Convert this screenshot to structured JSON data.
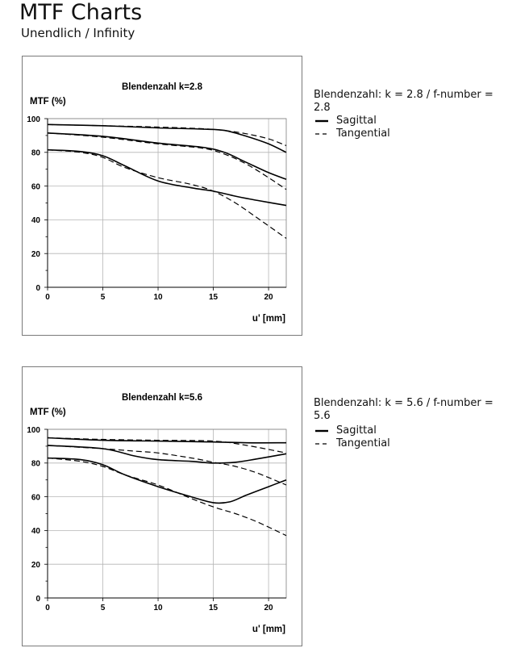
{
  "page": {
    "title": "MTF Charts",
    "subtitle": "Unendlich / Infinity"
  },
  "legend": {
    "sagittal": "Sagittal",
    "tangential": "Tangential"
  },
  "charts": [
    {
      "note": "Blendenzahl: k = 2.8 / f-number = 2.8"
    },
    {
      "note": "Blendenzahl: k = 5.6 / f-number = 5.6"
    }
  ],
  "chart_data": [
    {
      "type": "line",
      "title": "Blendenzahl k=2.8",
      "ylabel": "MTF (%)",
      "xlabel": "u' [mm]",
      "xlim": [
        0,
        21.6
      ],
      "ylim": [
        0,
        100
      ],
      "xticks": [
        0,
        5,
        10,
        15,
        20
      ],
      "yticks": [
        0,
        20,
        40,
        60,
        80,
        100
      ],
      "grid": true,
      "series": [
        {
          "name": "Sagittal",
          "style": "solid",
          "x": [
            0,
            5,
            10,
            14,
            16,
            18,
            20,
            21.6
          ],
          "y": [
            96.5,
            95.8,
            94.5,
            93.8,
            93,
            89.5,
            85,
            80
          ]
        },
        {
          "name": "Tangential",
          "style": "dashed",
          "x": [
            0,
            5,
            10,
            14,
            16,
            18,
            20,
            21.6
          ],
          "y": [
            96.5,
            95.8,
            95,
            94,
            93,
            91,
            88,
            84
          ]
        },
        {
          "name": "Sagittal",
          "style": "solid",
          "x": [
            0,
            5,
            10,
            14,
            16,
            18,
            20,
            21.6
          ],
          "y": [
            91.5,
            89.5,
            85.5,
            83,
            80,
            74,
            68,
            64
          ]
        },
        {
          "name": "Tangential",
          "style": "dashed",
          "x": [
            0,
            5,
            10,
            14,
            16,
            18,
            20,
            21.6
          ],
          "y": [
            91.5,
            89,
            85,
            82.5,
            79,
            73,
            65,
            58
          ]
        },
        {
          "name": "Sagittal",
          "style": "solid",
          "x": [
            0,
            3,
            5,
            7,
            10,
            13,
            15,
            17,
            19,
            21.6
          ],
          "y": [
            81.5,
            80.5,
            78,
            72,
            63,
            59,
            57,
            54,
            51.5,
            48.5
          ]
        },
        {
          "name": "Tangential",
          "style": "dashed",
          "x": [
            0,
            3,
            5,
            7,
            10,
            13,
            15,
            17,
            19,
            21.6
          ],
          "y": [
            81.5,
            80,
            77,
            71,
            65,
            61,
            57,
            50,
            41,
            29
          ]
        }
      ]
    },
    {
      "type": "line",
      "title": "Blendenzahl k=5.6",
      "ylabel": "MTF (%)",
      "xlabel": "u' [mm]",
      "xlim": [
        0,
        21.6
      ],
      "ylim": [
        0,
        100
      ],
      "xticks": [
        0,
        5,
        10,
        15,
        20
      ],
      "yticks": [
        0,
        20,
        40,
        60,
        80,
        100
      ],
      "grid": true,
      "series": [
        {
          "name": "Sagittal",
          "style": "solid",
          "x": [
            0,
            5,
            10,
            15,
            18,
            21.6
          ],
          "y": [
            95,
            93.5,
            93,
            92.5,
            92,
            92
          ]
        },
        {
          "name": "Tangential",
          "style": "dashed",
          "x": [
            0,
            5,
            10,
            15,
            18,
            21.6
          ],
          "y": [
            95,
            94,
            93.5,
            93,
            90.5,
            86
          ]
        },
        {
          "name": "Sagittal",
          "style": "solid",
          "x": [
            0,
            5,
            8,
            10,
            13,
            15,
            17,
            19,
            21.6
          ],
          "y": [
            90.5,
            88.5,
            84,
            82,
            81,
            80,
            80.5,
            82.5,
            85.5
          ]
        },
        {
          "name": "Tangential",
          "style": "dashed",
          "x": [
            0,
            5,
            8,
            10,
            13,
            15,
            17,
            19,
            21.6
          ],
          "y": [
            90.5,
            88.5,
            87,
            86,
            83,
            80.5,
            78,
            74,
            67
          ]
        },
        {
          "name": "Sagittal",
          "style": "solid",
          "x": [
            0,
            3,
            5,
            7,
            10,
            13,
            15,
            16.5,
            18,
            20,
            21.6
          ],
          "y": [
            83,
            82,
            79,
            73,
            66,
            60,
            56.5,
            57,
            61,
            66,
            70
          ]
        },
        {
          "name": "Tangential",
          "style": "dashed",
          "x": [
            0,
            3,
            5,
            7,
            10,
            13,
            15,
            17,
            19,
            21.6
          ],
          "y": [
            83,
            81,
            78,
            73,
            67,
            59,
            54,
            50,
            45,
            37
          ]
        }
      ]
    }
  ]
}
